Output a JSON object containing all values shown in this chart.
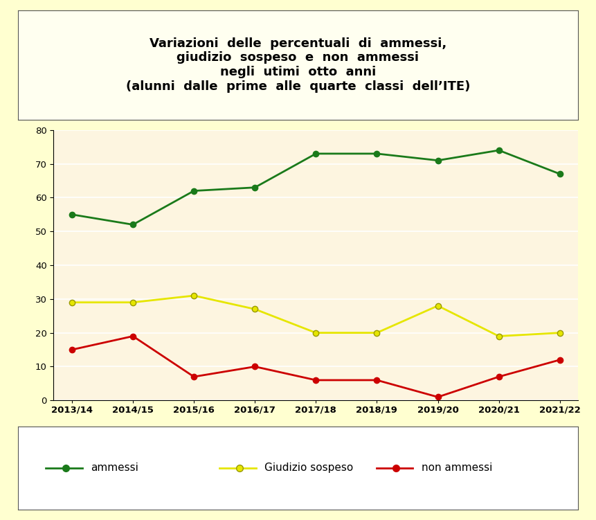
{
  "title_lines": [
    "Variazioni  delle  percentuali  di  ammessi,",
    "giudizio  sospeso  e  non  ammessi",
    "negli  utimi  otto  anni",
    "(alunni  dalle  prime  alle  quarte  classi  dell’ITE)"
  ],
  "x_labels": [
    "2013/14",
    "2014/15",
    "2015/16",
    "2016/17",
    "2017/18",
    "2018/19",
    "2019/20",
    "2020/21",
    "2021/22"
  ],
  "ammessi": [
    55,
    52,
    62,
    63,
    73,
    73,
    71,
    74,
    67
  ],
  "giudizio_sospeso": [
    29,
    29,
    31,
    27,
    20,
    20,
    28,
    19,
    20
  ],
  "non_ammessi": [
    15,
    19,
    7,
    10,
    6,
    6,
    1,
    7,
    12
  ],
  "ammessi_color": "#1a7a1a",
  "giudizio_color": "#e6e600",
  "non_ammessi_color": "#cc0000",
  "plot_bg_color": "#fdf5e0",
  "title_box_bg": "#fffff0",
  "outer_bg": "#ffffd0",
  "legend_bg": "#ffffff",
  "ylim": [
    0,
    80
  ],
  "yticks": [
    0,
    10,
    20,
    30,
    40,
    50,
    60,
    70,
    80
  ],
  "title_fontsize": 13,
  "legend_fontsize": 11,
  "tick_fontsize": 9.5
}
